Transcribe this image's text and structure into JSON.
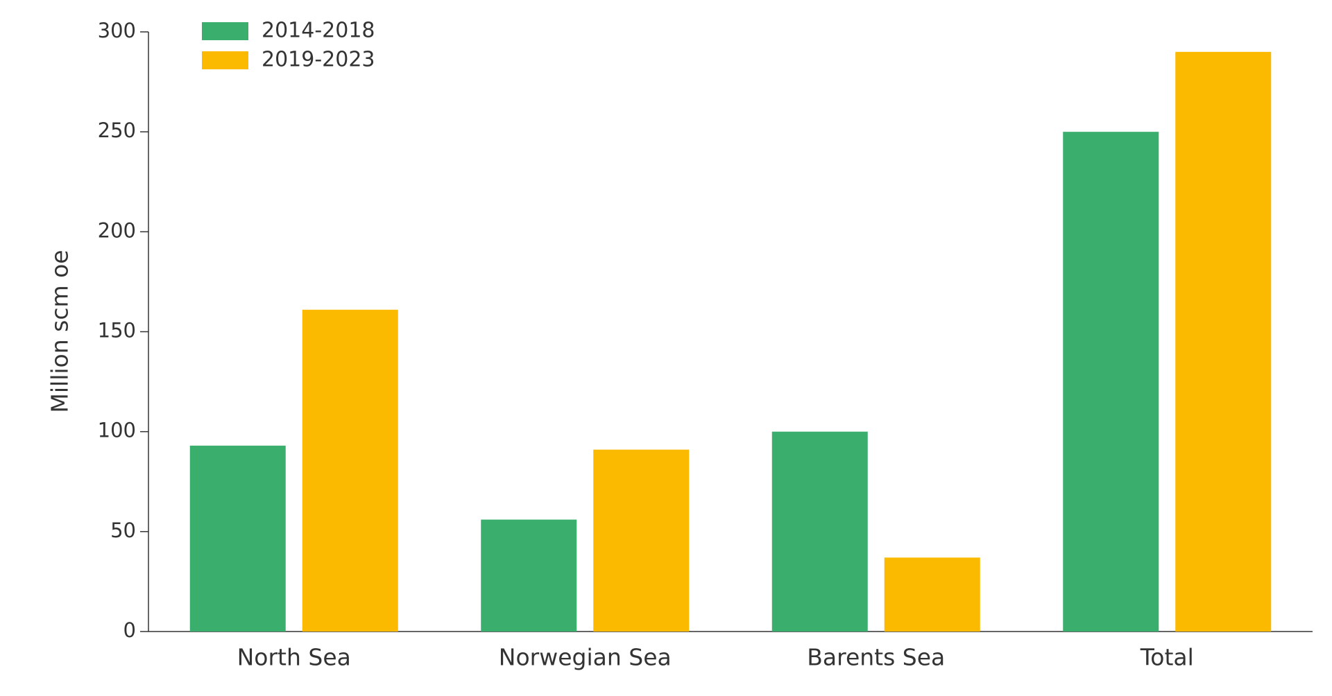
{
  "chart_data": {
    "type": "bar",
    "y_label": "Million scm oe",
    "categories": [
      "North Sea",
      "Norwegian Sea",
      "Barents Sea",
      "Total"
    ],
    "series": [
      {
        "name": "2014-2018",
        "color": "#3aae6c",
        "values": [
          93,
          56,
          100,
          250
        ]
      },
      {
        "name": "2019-2023",
        "color": "#fbb900",
        "values": [
          161,
          91,
          37,
          290
        ]
      }
    ],
    "ylim": [
      0,
      300
    ],
    "yticks": [
      0,
      50,
      100,
      150,
      200,
      250,
      300
    ],
    "legend": "top-left",
    "grid": false
  }
}
